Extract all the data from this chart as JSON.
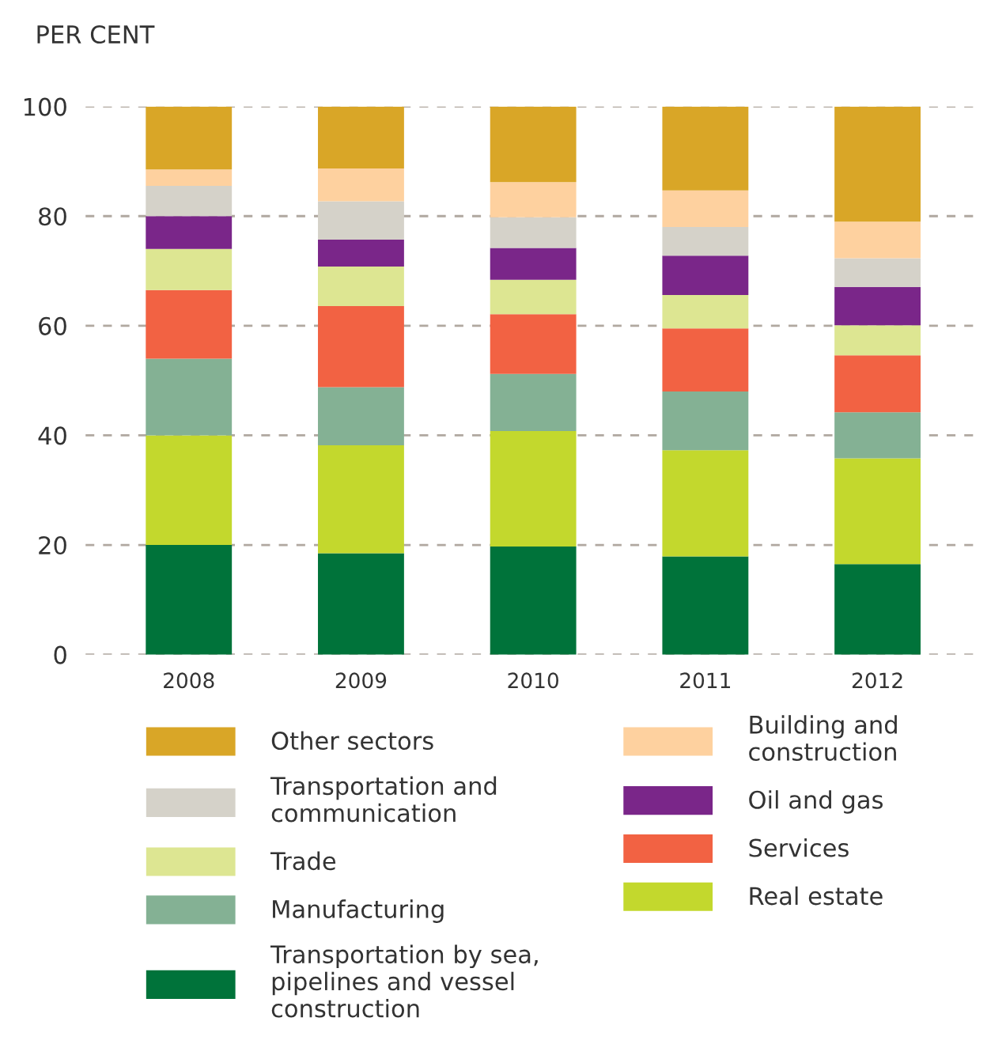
{
  "chart_data": {
    "type": "bar",
    "stacked": true,
    "ylabel": "PER CENT",
    "categories": [
      "2008",
      "2009",
      "2010",
      "2011",
      "2012"
    ],
    "ylim": [
      0,
      100
    ],
    "yticks": [
      0,
      20,
      40,
      60,
      80,
      100
    ],
    "grid": "y",
    "legend": "bottom",
    "series": [
      {
        "name": "Transportation by sea, pipelines and vessel construction",
        "color": "#00733a",
        "values": [
          20,
          18.5,
          19.7,
          17.9,
          16.5
        ]
      },
      {
        "name": "Real estate",
        "color": "#c3d82d",
        "values": [
          20,
          19.7,
          21.1,
          19.4,
          19.3
        ]
      },
      {
        "name": "Manufacturing",
        "color": "#84b194",
        "values": [
          14,
          10.6,
          10.4,
          10.7,
          8.4
        ]
      },
      {
        "name": "Services",
        "color": "#f26243",
        "values": [
          12.5,
          14.8,
          10.9,
          11.5,
          10.4
        ]
      },
      {
        "name": "Trade",
        "color": "#dde692",
        "values": [
          7.5,
          7.2,
          6.3,
          6.1,
          5.5
        ]
      },
      {
        "name": "Oil and gas",
        "color": "#7a2689",
        "values": [
          6,
          4.9,
          5.8,
          7.2,
          7
        ]
      },
      {
        "name": "Transportation and communication",
        "color": "#d5d2c9",
        "values": [
          5.5,
          7,
          5.6,
          5.2,
          5.2
        ]
      },
      {
        "name": "Building and construction",
        "color": "#fed19f",
        "values": [
          3,
          6,
          6.4,
          6.7,
          6.7
        ]
      },
      {
        "name": "Other sectors",
        "color": "#d9a627",
        "values": [
          11.5,
          11.3,
          13.8,
          15.3,
          21
        ]
      }
    ]
  }
}
